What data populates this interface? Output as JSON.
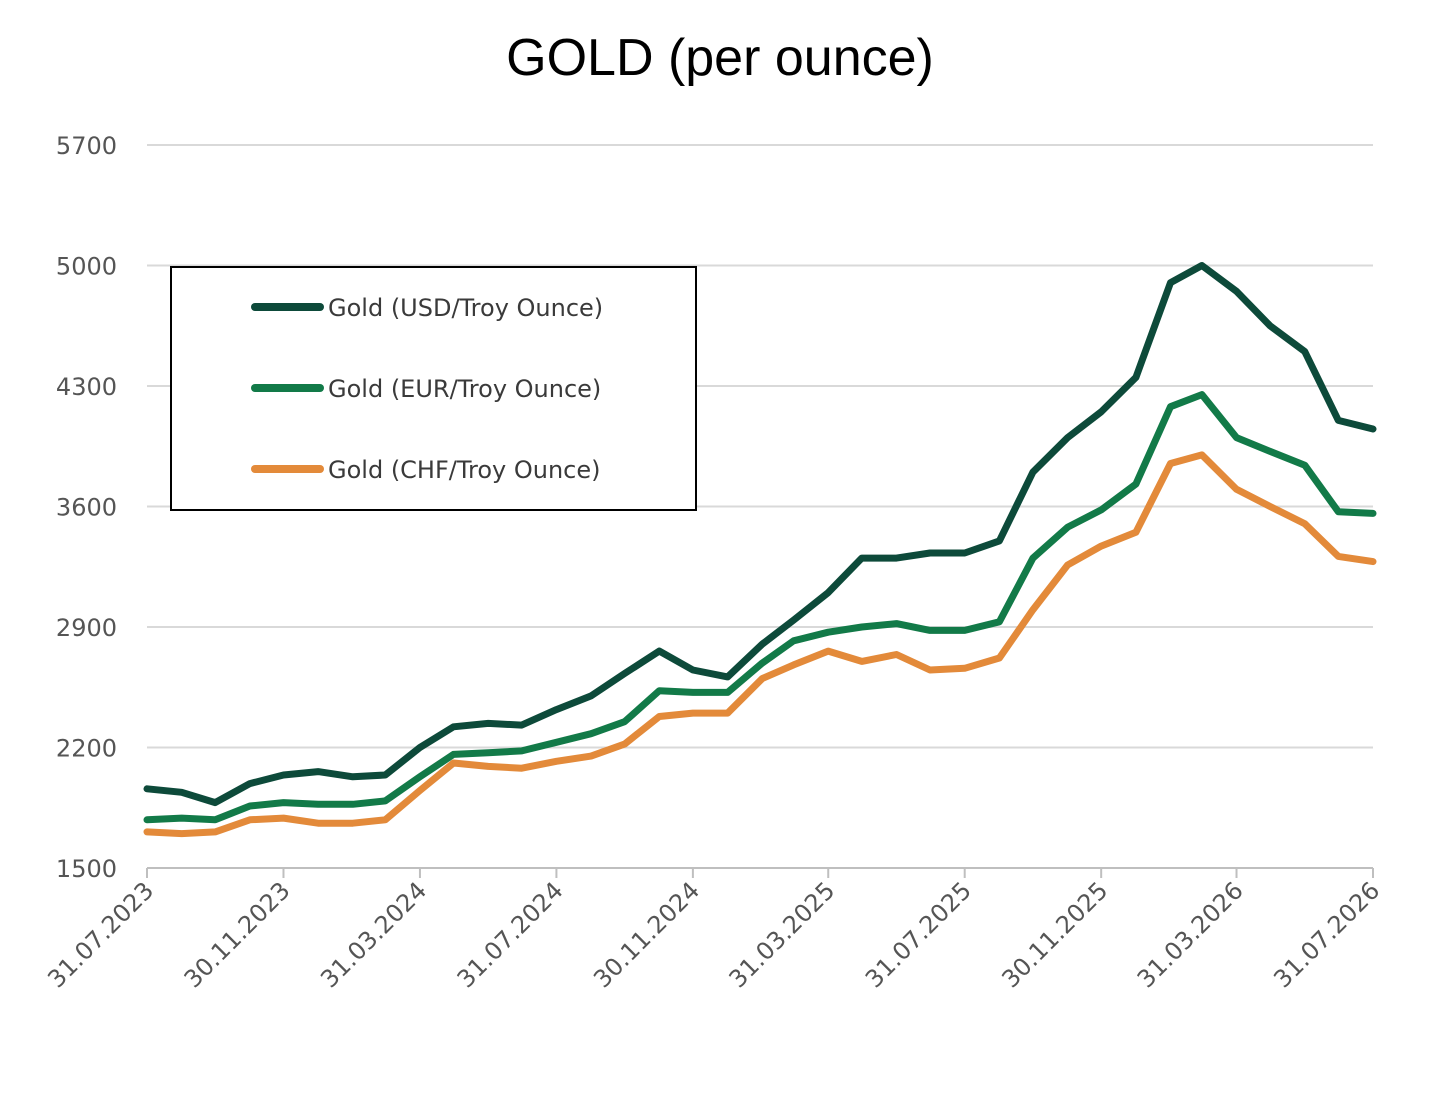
{
  "chart_data": {
    "type": "line",
    "title": "GOLD (per ounce)",
    "xlabel": "",
    "ylabel": "",
    "ylim": [
      1500,
      5700
    ],
    "yticks": [
      1500,
      2200,
      2900,
      3600,
      4300,
      5000,
      5700
    ],
    "xticks": [
      "31.07.2023",
      "30.11.2023",
      "31.03.2024",
      "31.07.2024",
      "30.11.2024",
      "31.03.2025",
      "31.07.2025",
      "30.11.2025",
      "31.03.2026",
      "31.07.2026"
    ],
    "grid": "horizontal",
    "legend_position": "upper-left",
    "x": [
      "2023-07-31",
      "2023-08-31",
      "2023-09-30",
      "2023-10-31",
      "2023-11-30",
      "2023-12-31",
      "2024-01-31",
      "2024-02-29",
      "2024-03-31",
      "2024-04-30",
      "2024-05-31",
      "2024-06-30",
      "2024-07-31",
      "2024-08-31",
      "2024-09-30",
      "2024-10-31",
      "2024-11-30",
      "2024-12-31",
      "2025-01-31",
      "2025-02-28",
      "2025-03-31",
      "2025-04-30",
      "2025-05-31",
      "2025-06-30",
      "2025-07-31",
      "2025-08-31",
      "2025-09-30",
      "2025-10-31",
      "2025-11-30",
      "2025-12-31",
      "2026-01-31",
      "2026-02-28",
      "2026-03-31",
      "2026-04-30",
      "2026-05-31",
      "2026-06-30",
      "2026-07-31"
    ],
    "series": [
      {
        "name": "Gold (USD/Troy Ounce)",
        "color": "#0d4a3a",
        "values": [
          1960,
          1940,
          1880,
          1990,
          2040,
          2060,
          2030,
          2040,
          2200,
          2320,
          2340,
          2330,
          2420,
          2500,
          2630,
          2760,
          2650,
          2610,
          2800,
          2940,
          3100,
          3300,
          3300,
          3330,
          3330,
          3400,
          3800,
          4000,
          4150,
          4350,
          4900,
          5000,
          4850,
          4650,
          4500,
          4100,
          4050
        ]
      },
      {
        "name": "Gold (EUR/Troy Ounce)",
        "color": "#127a48",
        "values": [
          1780,
          1790,
          1780,
          1860,
          1880,
          1870,
          1870,
          1890,
          2030,
          2160,
          2170,
          2180,
          2230,
          2280,
          2350,
          2530,
          2520,
          2520,
          2690,
          2820,
          2870,
          2900,
          2920,
          2880,
          2880,
          2930,
          3300,
          3480,
          3580,
          3730,
          4180,
          4250,
          4000,
          3920,
          3840,
          3570,
          3560
        ]
      },
      {
        "name": "Gold (CHF/Troy Ounce)",
        "color": "#e38a3a",
        "values": [
          1710,
          1700,
          1710,
          1780,
          1790,
          1760,
          1760,
          1780,
          1950,
          2110,
          2090,
          2080,
          2120,
          2150,
          2220,
          2380,
          2400,
          2400,
          2600,
          2680,
          2760,
          2700,
          2740,
          2650,
          2660,
          2720,
          3000,
          3260,
          3370,
          3450,
          3850,
          3900,
          3700,
          3600,
          3500,
          3310,
          3280
        ]
      }
    ]
  }
}
